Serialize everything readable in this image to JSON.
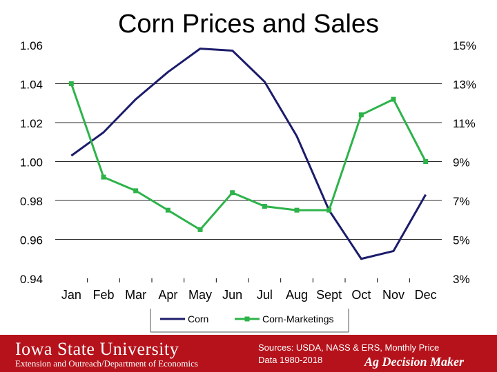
{
  "chart_data": {
    "type": "line",
    "title": "Corn Prices and Sales",
    "categories": [
      "Jan",
      "Feb",
      "Mar",
      "Apr",
      "May",
      "Jun",
      "Jul",
      "Aug",
      "Sept",
      "Oct",
      "Nov",
      "Dec"
    ],
    "y_left": {
      "ticks": [
        "1.06",
        "1.04",
        "1.02",
        "1.00",
        "0.98",
        "0.96",
        "0.94"
      ],
      "range": [
        0.94,
        1.06
      ]
    },
    "y_right": {
      "ticks": [
        "15%",
        "13%",
        "11%",
        "9%",
        "7%",
        "5%",
        "3%"
      ],
      "range": [
        3,
        15
      ]
    },
    "series": [
      {
        "name": "Corn",
        "axis": "left",
        "color": "#1c1c6b",
        "marker": "none",
        "values": [
          1.003,
          1.015,
          1.032,
          1.046,
          1.058,
          1.057,
          1.041,
          1.013,
          0.975,
          0.95,
          0.954,
          0.983
        ]
      },
      {
        "name": "Corn-Marketings",
        "axis": "right",
        "color": "#2db34a",
        "marker": "square",
        "values": [
          13.0,
          8.2,
          7.5,
          6.5,
          5.5,
          7.4,
          6.7,
          6.5,
          6.5,
          11.4,
          12.2,
          9.0
        ]
      }
    ],
    "grid": "horizontal",
    "legend_position": "bottom"
  },
  "footer": {
    "university": "Iowa State University",
    "department": "Extension and Outreach/Department of Economics",
    "sources_line1": "Sources: USDA, NASS & ERS, Monthly Price",
    "sources_line2": "Data 1980-2018",
    "brand": "Ag Decision Maker",
    "background_color": "#b5121b"
  }
}
